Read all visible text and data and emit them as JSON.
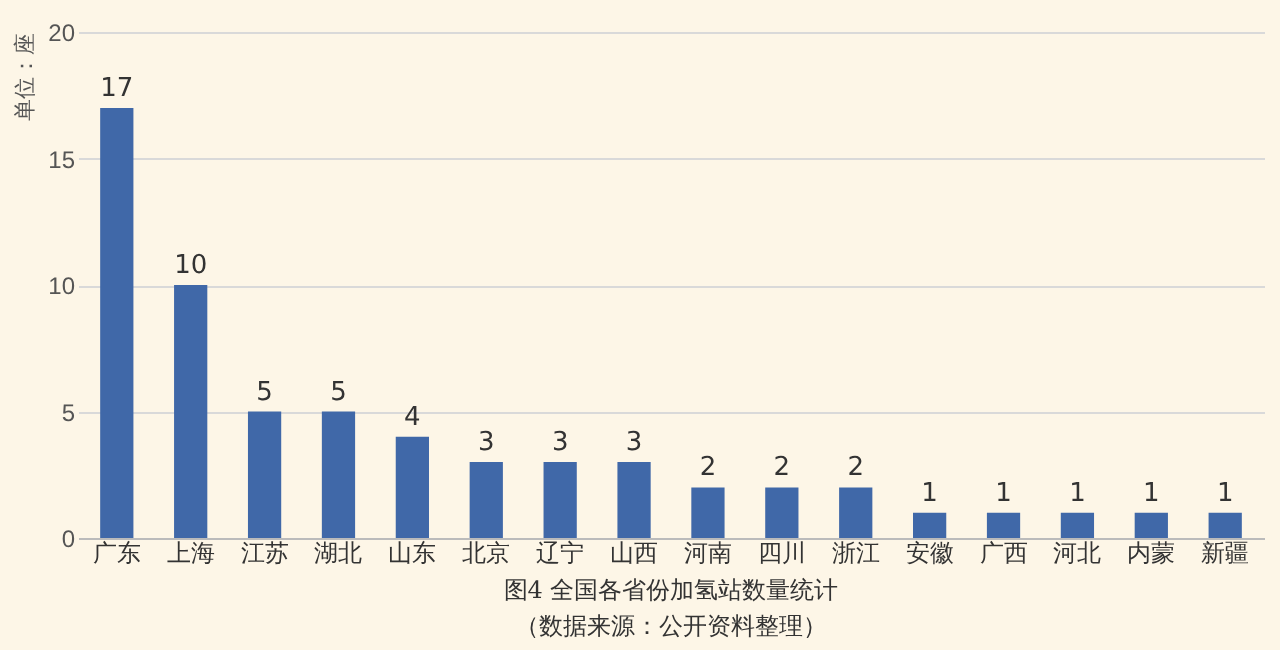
{
  "chart_data": {
    "type": "bar",
    "title": "图4  全国各省份加氢站数量统计",
    "subtitle": "（数据来源：公开资料整理）",
    "ylabel": "单位：座",
    "categories": [
      "广东",
      "上海",
      "江苏",
      "湖北",
      "山东",
      "北京",
      "辽宁",
      "山西",
      "河南",
      "四川",
      "浙江",
      "安徽",
      "广西",
      "河北",
      "内蒙",
      "新疆"
    ],
    "values": [
      17,
      10,
      5,
      5,
      4,
      3,
      3,
      3,
      2,
      2,
      2,
      1,
      1,
      1,
      1,
      1
    ],
    "color": "#4068a8",
    "ylim": [
      0,
      20
    ],
    "yticks": [
      0,
      5,
      10,
      15,
      20
    ],
    "grid": "y",
    "data_labels": true
  }
}
